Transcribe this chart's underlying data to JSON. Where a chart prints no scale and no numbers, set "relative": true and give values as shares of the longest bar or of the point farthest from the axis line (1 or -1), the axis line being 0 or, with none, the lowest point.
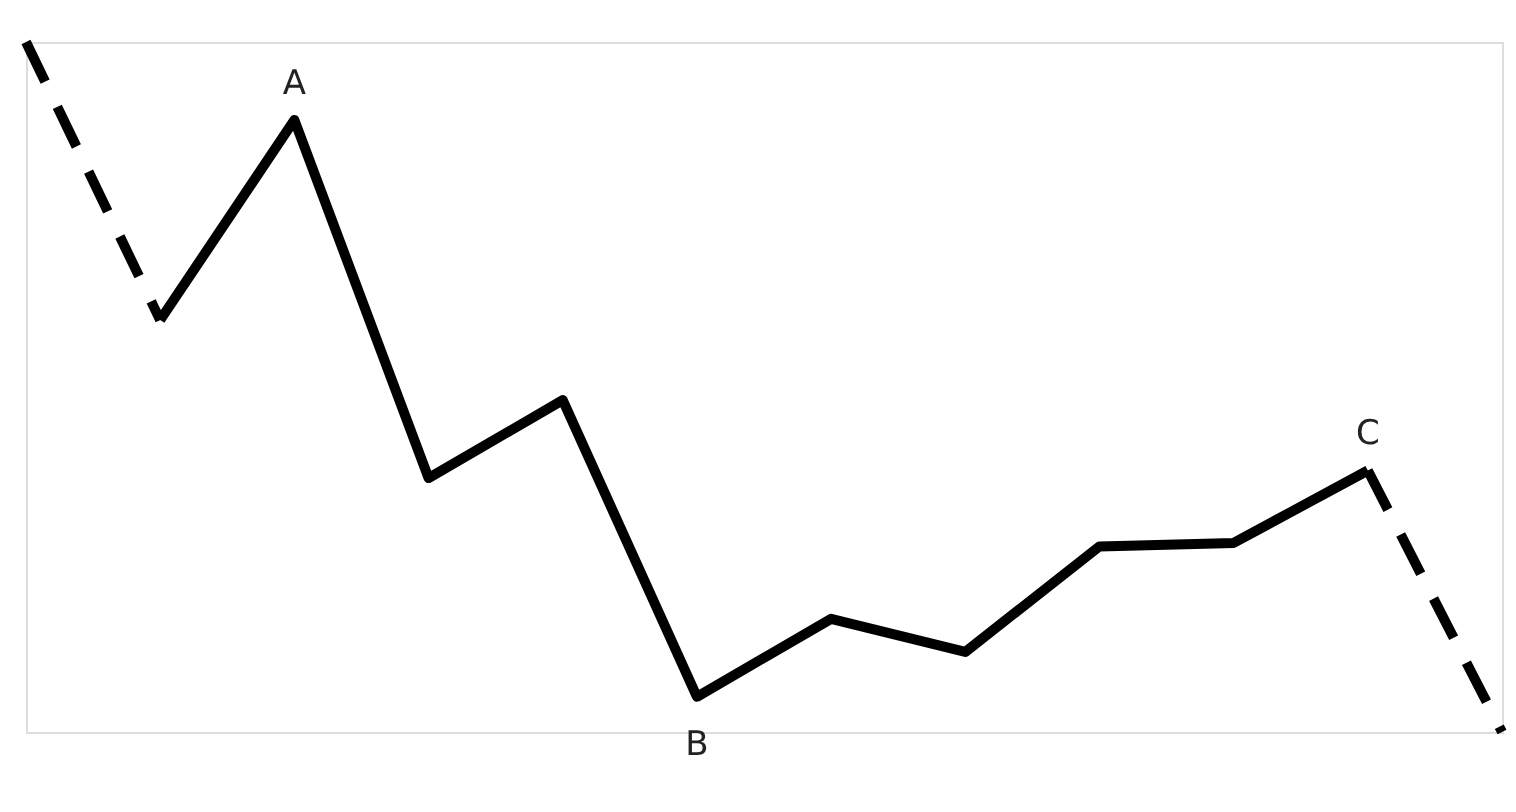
{
  "chart_data": {
    "type": "line",
    "relative": true,
    "marker": "none",
    "categories": [
      null,
      null,
      null,
      null,
      null,
      null,
      null,
      null,
      null,
      null,
      null,
      null
    ],
    "series": [
      {
        "color": "#000000",
        "line_style": "dashed",
        "values": [
          1.0,
          0.597,
          null,
          null,
          null,
          null,
          null,
          null,
          null,
          null,
          null,
          null
        ]
      },
      {
        "color": "#000000",
        "line_style": "solid",
        "values": [
          null,
          0.597,
          0.887,
          0.368,
          0.481,
          0.051,
          0.164,
          0.116,
          0.269,
          0.274,
          0.379,
          null
        ]
      },
      {
        "color": "#000000",
        "line_style": "dashed",
        "values": [
          null,
          null,
          null,
          null,
          null,
          null,
          null,
          null,
          null,
          null,
          0.379,
          0
        ]
      }
    ],
    "annotations": [
      {
        "text": "A",
        "y": 0.887
      },
      {
        "text": "B",
        "y": 0.051
      },
      {
        "text": "C",
        "y": 0.379
      }
    ]
  }
}
